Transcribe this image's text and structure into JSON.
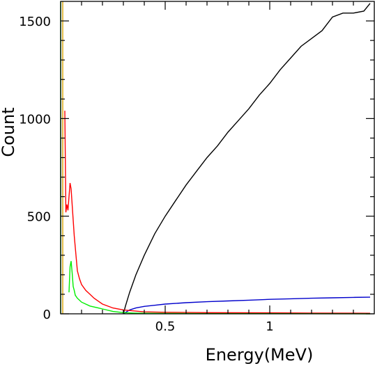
{
  "chart_data": {
    "type": "line",
    "title": "",
    "xlabel": "Energy(MeV)",
    "ylabel": "Count",
    "xlim": [
      0.0,
      1.5
    ],
    "ylim": [
      0,
      1600
    ],
    "x_ticks": [
      {
        "value": 0.5,
        "label": "0.5"
      },
      {
        "value": 1.0,
        "label": "1"
      }
    ],
    "y_ticks": [
      {
        "value": 0,
        "label": "0"
      },
      {
        "value": 500,
        "label": "500"
      },
      {
        "value": 1000,
        "label": "1000"
      },
      {
        "value": 1500,
        "label": "1500"
      }
    ],
    "grid": false,
    "legend": "none",
    "series": [
      {
        "color": "#000000",
        "x": [
          0.3,
          0.31,
          0.33,
          0.36,
          0.4,
          0.45,
          0.5,
          0.55,
          0.6,
          0.65,
          0.7,
          0.75,
          0.8,
          0.85,
          0.9,
          0.95,
          1.0,
          1.05,
          1.1,
          1.15,
          1.2,
          1.25,
          1.3,
          1.35,
          1.4,
          1.45,
          1.48
        ],
        "y": [
          0,
          40,
          110,
          200,
          300,
          410,
          500,
          580,
          660,
          730,
          800,
          860,
          930,
          990,
          1050,
          1120,
          1180,
          1250,
          1310,
          1370,
          1410,
          1450,
          1520,
          1540,
          1540,
          1550,
          1590
        ]
      },
      {
        "color": "#0000cc",
        "x": [
          0.3,
          0.33,
          0.36,
          0.4,
          0.45,
          0.5,
          0.6,
          0.7,
          0.8,
          0.9,
          1.0,
          1.1,
          1.2,
          1.3,
          1.4,
          1.48
        ],
        "y": [
          0,
          20,
          30,
          38,
          44,
          50,
          57,
          62,
          66,
          70,
          74,
          77,
          80,
          82,
          84,
          85
        ]
      },
      {
        "color": "#ff0000",
        "x": [
          0.02,
          0.025,
          0.03,
          0.035,
          0.04,
          0.045,
          0.05,
          0.055,
          0.06,
          0.065,
          0.07,
          0.08,
          0.09,
          0.1,
          0.12,
          0.14,
          0.16,
          0.18,
          0.2,
          0.25,
          0.3,
          0.35,
          0.4,
          0.5,
          0.7,
          1.0,
          1.2,
          1.48
        ],
        "y": [
          1040,
          520,
          560,
          530,
          600,
          670,
          640,
          560,
          480,
          400,
          340,
          220,
          180,
          150,
          120,
          100,
          80,
          65,
          50,
          30,
          20,
          15,
          10,
          8,
          6,
          5,
          4,
          3
        ]
      },
      {
        "color": "#00ee00",
        "x": [
          0.04,
          0.045,
          0.05,
          0.055,
          0.06,
          0.065,
          0.07,
          0.08,
          0.09,
          0.1,
          0.12,
          0.14,
          0.16,
          0.18,
          0.2,
          0.25,
          0.3,
          0.35,
          0.4,
          0.5,
          0.7,
          1.0,
          1.48
        ],
        "y": [
          110,
          240,
          270,
          210,
          140,
          120,
          95,
          80,
          70,
          60,
          50,
          40,
          35,
          30,
          25,
          12,
          6,
          4,
          3,
          2,
          1,
          1,
          0
        ]
      },
      {
        "color": "#00c000",
        "x": [
          0.0,
          0.0
        ],
        "y": [
          0,
          1600
        ]
      },
      {
        "color": "#d4a000",
        "x": [
          0.01,
          0.01
        ],
        "y": [
          0,
          1600
        ]
      }
    ]
  }
}
